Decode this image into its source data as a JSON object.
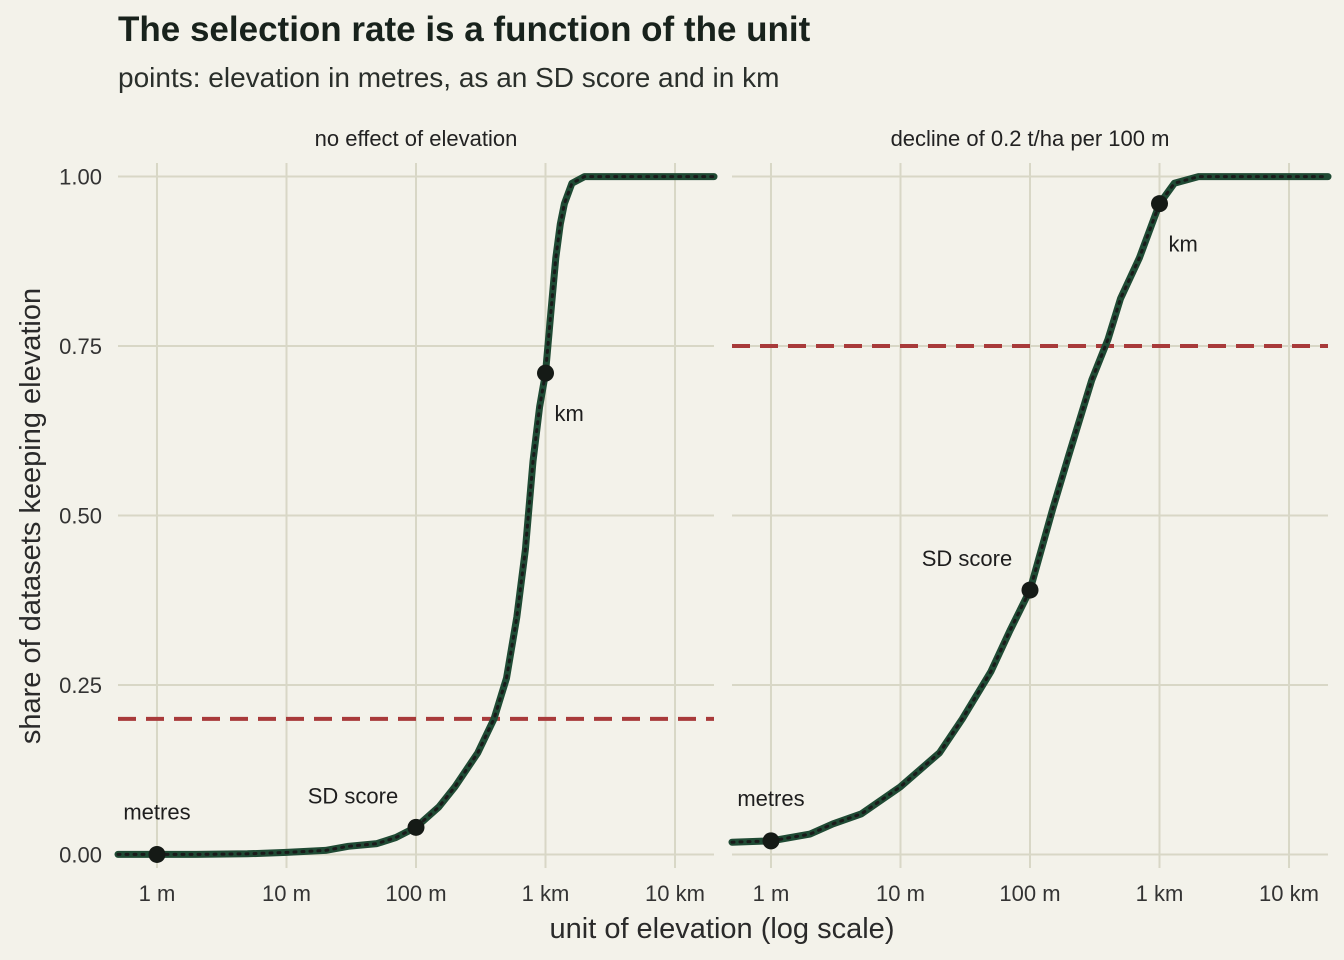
{
  "chart_data": {
    "type": "line",
    "title": "The selection rate is a function of the unit",
    "subtitle": "points: elevation in metres, as an SD score and in km",
    "xlabel": "unit of elevation (log scale)",
    "ylabel": "share of datasets keeping elevation",
    "x_scale": "log",
    "x_ticks": [
      1,
      10,
      100,
      1000,
      10000
    ],
    "x_tick_labels": [
      "1 m",
      "10 m",
      "100 m",
      "1 km",
      "10 km"
    ],
    "y_ticks": [
      0,
      0.25,
      0.5,
      0.75,
      1
    ],
    "y_tick_labels": [
      "0.00",
      "0.25",
      "0.50",
      "0.75",
      "1.00"
    ],
    "xlim": [
      0.5,
      20000
    ],
    "ylim": [
      -0.02,
      1.02
    ],
    "grid": true,
    "colors": {
      "curve": "#1f4a34",
      "smooth": "#1a1a1a",
      "threshold": "#a83a3a",
      "point": "#151a16",
      "grid": "#d8d7c6",
      "background": "#f3f2ea"
    },
    "facets": [
      {
        "name": "no effect of elevation",
        "threshold": 0.2,
        "curve": [
          [
            0.5,
            0.0
          ],
          [
            2,
            0.0
          ],
          [
            5,
            0.001
          ],
          [
            10,
            0.003
          ],
          [
            20,
            0.006
          ],
          [
            30,
            0.012
          ],
          [
            50,
            0.016
          ],
          [
            70,
            0.025
          ],
          [
            100,
            0.04
          ],
          [
            150,
            0.07
          ],
          [
            200,
            0.1
          ],
          [
            300,
            0.15
          ],
          [
            400,
            0.2
          ],
          [
            500,
            0.26
          ],
          [
            600,
            0.35
          ],
          [
            700,
            0.45
          ],
          [
            800,
            0.58
          ],
          [
            900,
            0.66
          ],
          [
            1000,
            0.71
          ],
          [
            1100,
            0.8
          ],
          [
            1200,
            0.88
          ],
          [
            1300,
            0.93
          ],
          [
            1400,
            0.96
          ],
          [
            1600,
            0.99
          ],
          [
            2000,
            1.0
          ],
          [
            20000,
            1.0
          ]
        ],
        "points": [
          {
            "label": "metres",
            "x": 1,
            "y": 0.0
          },
          {
            "label": "SD score",
            "x": 100,
            "y": 0.04
          },
          {
            "label": "km",
            "x": 1000,
            "y": 0.71
          }
        ]
      },
      {
        "name": "decline of 0.2 t/ha per 100 m",
        "threshold": 0.75,
        "curve": [
          [
            0.5,
            0.018
          ],
          [
            1,
            0.02
          ],
          [
            2,
            0.03
          ],
          [
            3,
            0.045
          ],
          [
            5,
            0.06
          ],
          [
            10,
            0.1
          ],
          [
            20,
            0.15
          ],
          [
            30,
            0.2
          ],
          [
            50,
            0.27
          ],
          [
            70,
            0.33
          ],
          [
            100,
            0.39
          ],
          [
            150,
            0.51
          ],
          [
            200,
            0.59
          ],
          [
            300,
            0.7
          ],
          [
            400,
            0.76
          ],
          [
            500,
            0.82
          ],
          [
            700,
            0.88
          ],
          [
            1000,
            0.96
          ],
          [
            1300,
            0.99
          ],
          [
            2000,
            1.0
          ],
          [
            20000,
            1.0
          ]
        ],
        "points": [
          {
            "label": "metres",
            "x": 1,
            "y": 0.02
          },
          {
            "label": "SD score",
            "x": 100,
            "y": 0.39
          },
          {
            "label": "km",
            "x": 1000,
            "y": 0.96
          }
        ]
      }
    ]
  }
}
